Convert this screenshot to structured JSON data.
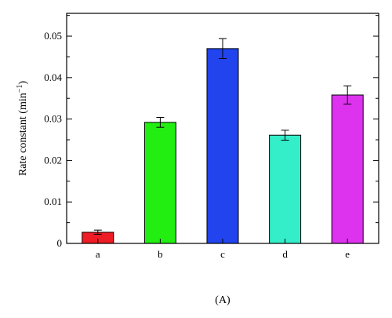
{
  "chart_data": {
    "type": "bar",
    "categories": [
      "a",
      "b",
      "c",
      "d",
      "e"
    ],
    "values": [
      0.0027,
      0.0292,
      0.047,
      0.0261,
      0.0358
    ],
    "errors": [
      0.0005,
      0.0012,
      0.0024,
      0.0012,
      0.0022
    ],
    "colors": [
      "#ee1c25",
      "#22ee11",
      "#2244ee",
      "#33eec8",
      "#dd33ee"
    ],
    "ylabel": "Rate constant (min",
    "ylabel_superscript": "−1",
    "ylabel_close": ")",
    "ylim": [
      0,
      0.0555
    ],
    "yticks": [
      0,
      0.01,
      0.02,
      0.03,
      0.04,
      0.05
    ],
    "ytick_labels": [
      "0",
      "0.01",
      "0.02",
      "0.03",
      "0.04",
      "0.05"
    ],
    "grid": false,
    "legend": "none"
  },
  "caption": "(A)"
}
